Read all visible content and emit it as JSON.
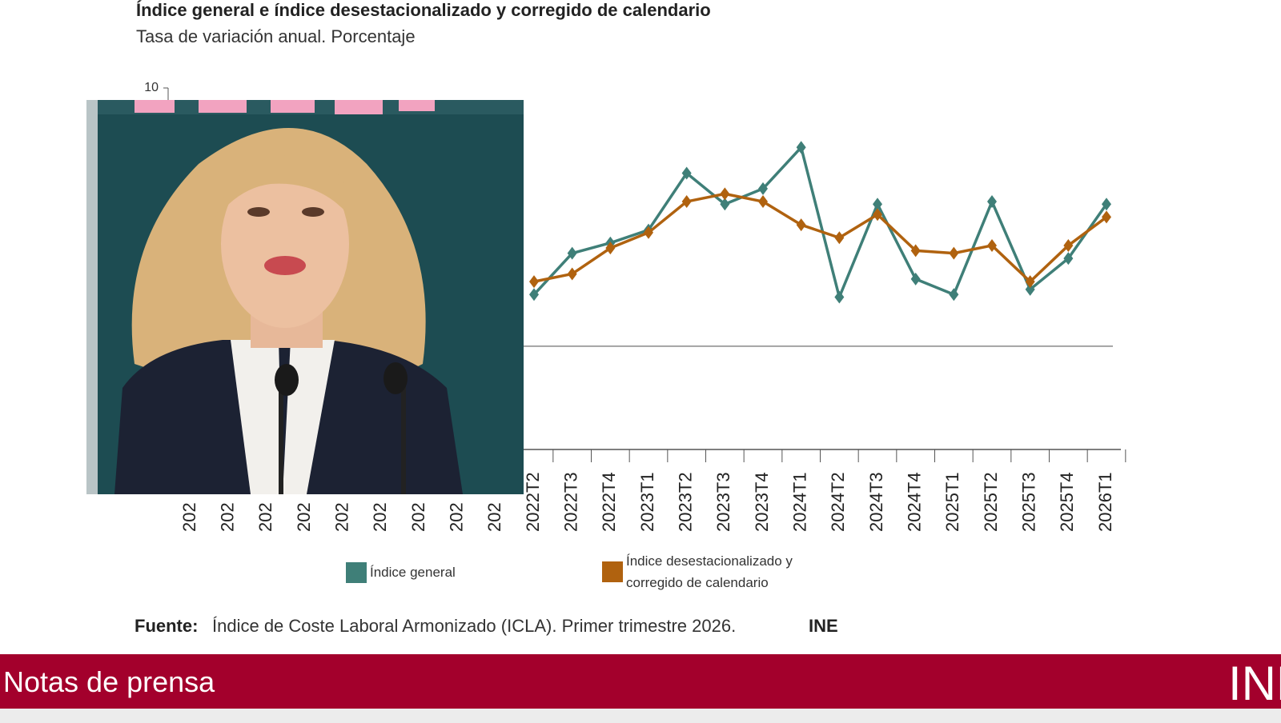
{
  "chart_data": {
    "type": "line",
    "title": "Índice general e índice desestacionalizado y corregido de calendario",
    "subtitle": "Tasa de variación anual. Porcentaje",
    "categories": [
      "202",
      "202",
      "202",
      "202",
      "202",
      "202",
      "202",
      "202",
      "202",
      "2022T2",
      "2022T3",
      "2022T4",
      "2023T1",
      "2023T2",
      "2023T3",
      "2023T4",
      "2024T1",
      "2024T2",
      "2024T3",
      "2024T4",
      "2025T1",
      "2025T2",
      "2025T3",
      "2025T4",
      "2026T1"
    ],
    "series": [
      {
        "name": "Índice general",
        "color": "#3f7f78",
        "values": [
          null,
          null,
          null,
          null,
          null,
          null,
          null,
          null,
          null,
          2.0,
          3.6,
          4.0,
          4.5,
          6.7,
          5.5,
          6.1,
          7.7,
          1.9,
          5.5,
          2.6,
          2.0,
          5.6,
          2.2,
          3.4,
          5.5
        ]
      },
      {
        "name": "Índice desestacionalizado y corregido de calendario",
        "color": "#b0620f",
        "values": [
          null,
          null,
          null,
          null,
          null,
          null,
          null,
          null,
          null,
          2.5,
          2.8,
          3.8,
          4.4,
          5.6,
          5.9,
          5.6,
          4.7,
          4.2,
          5.1,
          3.7,
          3.6,
          3.9,
          2.5,
          3.9,
          5.0
        ]
      }
    ],
    "ylim": [
      -4,
      10
    ],
    "yticks": [
      10
    ],
    "source": {
      "label": "Fuente:",
      "text": "Índice de Coste Laboral Armonizado (ICLA). Primer trimestre 2026.",
      "org": "INE"
    }
  },
  "footer": {
    "title": "Notas de prensa",
    "logo": "INE"
  }
}
